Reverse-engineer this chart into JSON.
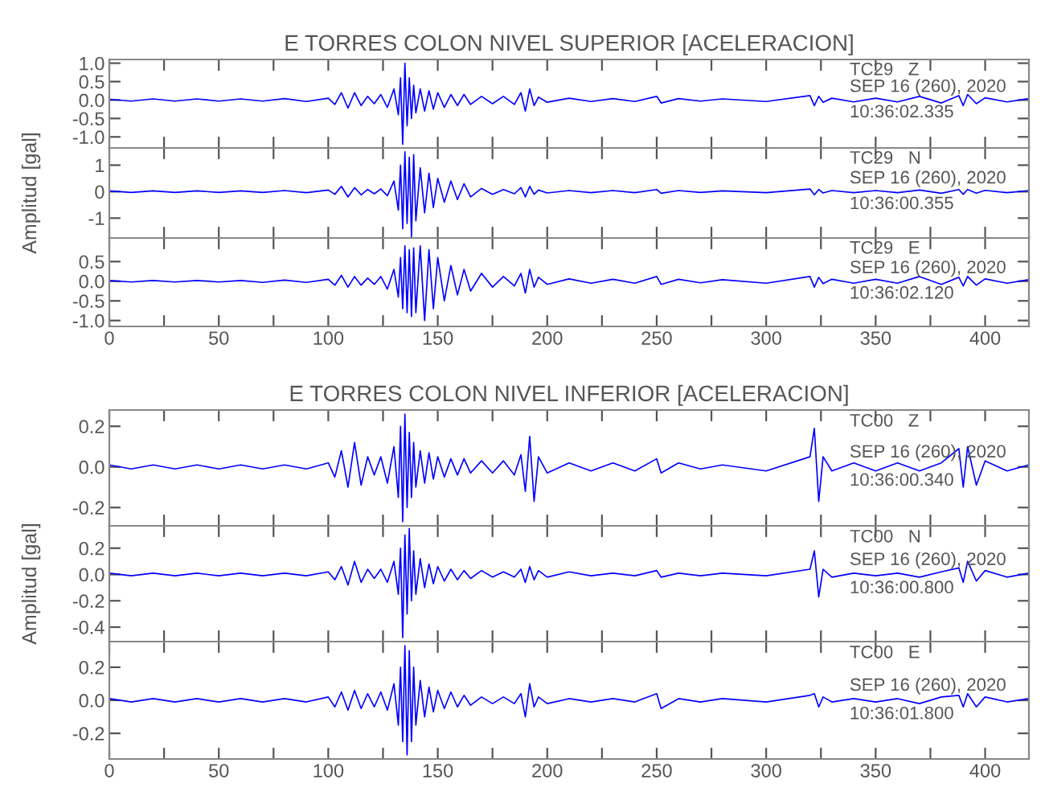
{
  "chart_data": [
    {
      "type": "line",
      "title": "E TORRES COLON NIVEL SUPERIOR [ACELERACION]",
      "annotations": [
        "TC29   Z",
        "SEP 16 (260), 2020",
        "10:36:02.335"
      ],
      "xlim": [
        0,
        420
      ],
      "xticks": [
        0,
        {
          "value": 25,
          "label": null
        },
        50,
        {
          "value": 75,
          "label": null
        },
        100,
        {
          "value": 125,
          "label": null
        },
        150,
        {
          "value": 175,
          "label": null
        },
        200,
        {
          "value": 225,
          "label": null
        },
        250,
        {
          "value": 275,
          "label": null
        },
        300,
        {
          "value": 325,
          "label": null
        },
        350,
        {
          "value": 375,
          "label": null
        },
        400
      ],
      "ylim": [
        -1.3,
        1.1
      ],
      "yticks": [
        {
          "value": 1,
          "label": "1.0"
        },
        0.5,
        {
          "value": 0,
          "label": "0.0"
        },
        -0.5,
        {
          "value": -1,
          "label": "-1.0"
        }
      ],
      "tick_labels": "y",
      "x": [
        0,
        10,
        20,
        30,
        40,
        50,
        60,
        70,
        80,
        90,
        100,
        103,
        106,
        109,
        112,
        115,
        118,
        121,
        124,
        127,
        130,
        132,
        133,
        134,
        135,
        136,
        137,
        138,
        139,
        140,
        142,
        144,
        146,
        148,
        150,
        153,
        156,
        159,
        162,
        165,
        170,
        175,
        180,
        185,
        188,
        190,
        192,
        194,
        196,
        200,
        210,
        220,
        230,
        240,
        250,
        252,
        260,
        270,
        280,
        300,
        320,
        322,
        324,
        326,
        330,
        340,
        350,
        360,
        370,
        380,
        388,
        390,
        392,
        396,
        400,
        410,
        420
      ],
      "series": [
        {
          "color": "#0000ff",
          "values": [
            0.02,
            -0.03,
            0.03,
            -0.03,
            0.03,
            -0.03,
            0.03,
            -0.03,
            0.04,
            -0.04,
            0.05,
            -0.12,
            0.2,
            -0.22,
            0.2,
            -0.15,
            0.1,
            -0.1,
            0.15,
            -0.2,
            0.3,
            -0.4,
            0.6,
            -1.2,
            1.0,
            -0.7,
            0.6,
            -0.5,
            0.4,
            -0.35,
            0.3,
            -0.3,
            0.25,
            -0.25,
            0.2,
            -0.2,
            0.15,
            -0.15,
            0.15,
            -0.12,
            0.1,
            -0.1,
            0.1,
            -0.12,
            0.2,
            -0.3,
            0.3,
            -0.15,
            0.08,
            -0.06,
            0.05,
            -0.04,
            0.04,
            -0.04,
            0.1,
            -0.08,
            0.04,
            -0.03,
            0.03,
            -0.04,
            0.12,
            -0.15,
            0.1,
            -0.06,
            0.05,
            -0.05,
            0.05,
            -0.05,
            0.1,
            -0.08,
            0.12,
            -0.15,
            0.15,
            -0.1,
            0.06,
            -0.05,
            0.04
          ]
        }
      ]
    },
    {
      "type": "line",
      "ylabel": "Amplitud [gal]",
      "annotations": [
        "TC29   N",
        "SEP 16 (260), 2020",
        "10:36:00.355"
      ],
      "xlim": [
        0,
        420
      ],
      "xticks": [
        0,
        {
          "value": 25,
          "label": null
        },
        50,
        {
          "value": 75,
          "label": null
        },
        100,
        {
          "value": 125,
          "label": null
        },
        150,
        {
          "value": 175,
          "label": null
        },
        200,
        {
          "value": 225,
          "label": null
        },
        250,
        {
          "value": 275,
          "label": null
        },
        300,
        {
          "value": 325,
          "label": null
        },
        350,
        {
          "value": 375,
          "label": null
        },
        400
      ],
      "ylim": [
        -1.75,
        1.65
      ],
      "yticks": [
        1,
        0,
        -1
      ],
      "tick_labels": "y",
      "x": [
        0,
        10,
        20,
        30,
        40,
        50,
        60,
        70,
        80,
        90,
        100,
        103,
        106,
        109,
        112,
        115,
        118,
        121,
        124,
        127,
        130,
        132,
        133,
        134,
        135,
        136,
        137,
        138,
        139,
        140,
        142,
        144,
        146,
        148,
        150,
        153,
        156,
        159,
        162,
        165,
        170,
        175,
        180,
        185,
        188,
        190,
        192,
        194,
        196,
        200,
        210,
        220,
        230,
        240,
        250,
        252,
        260,
        270,
        280,
        300,
        320,
        322,
        324,
        326,
        330,
        340,
        350,
        360,
        370,
        380,
        388,
        390,
        392,
        396,
        400,
        410,
        420
      ],
      "series": [
        {
          "color": "#0000ff",
          "values": [
            0.03,
            -0.03,
            0.03,
            -0.03,
            0.03,
            -0.03,
            0.03,
            -0.03,
            0.04,
            -0.04,
            0.06,
            -0.1,
            0.2,
            -0.2,
            0.15,
            -0.12,
            0.08,
            -0.08,
            0.1,
            -0.15,
            0.4,
            -0.7,
            1.0,
            -1.4,
            1.5,
            -1.2,
            1.3,
            -1.7,
            1.4,
            -1.1,
            0.9,
            -0.8,
            0.7,
            -0.6,
            0.5,
            -0.4,
            0.4,
            -0.3,
            0.3,
            -0.2,
            0.12,
            -0.1,
            0.08,
            -0.08,
            0.15,
            -0.2,
            0.2,
            -0.1,
            0.06,
            -0.05,
            0.04,
            -0.04,
            0.04,
            -0.04,
            0.08,
            -0.06,
            0.04,
            -0.03,
            0.03,
            -0.04,
            0.1,
            -0.12,
            0.08,
            -0.05,
            0.04,
            -0.04,
            0.04,
            -0.04,
            0.06,
            -0.06,
            0.08,
            -0.1,
            0.08,
            -0.06,
            0.05,
            -0.04,
            0.04
          ]
        }
      ]
    },
    {
      "type": "line",
      "annotations": [
        "TC29   E",
        "SEP 16 (260), 2020",
        "10:36:02.120"
      ],
      "xlim": [
        0,
        420
      ],
      "xticks": [
        0,
        {
          "value": 25,
          "label": null
        },
        50,
        {
          "value": 75,
          "label": null
        },
        100,
        {
          "value": 125,
          "label": null
        },
        150,
        {
          "value": 175,
          "label": null
        },
        200,
        {
          "value": 225,
          "label": null
        },
        250,
        {
          "value": 275,
          "label": null
        },
        300,
        {
          "value": 325,
          "label": null
        },
        350,
        {
          "value": 375,
          "label": null
        },
        400
      ],
      "ylim": [
        -1.15,
        1.1
      ],
      "yticks": [
        0.5,
        {
          "value": 0,
          "label": "0.0"
        },
        -0.5,
        {
          "value": -1,
          "label": "-1.0"
        }
      ],
      "x": [
        0,
        10,
        20,
        30,
        40,
        50,
        60,
        70,
        80,
        90,
        100,
        103,
        106,
        109,
        112,
        115,
        118,
        121,
        124,
        127,
        130,
        132,
        133,
        134,
        135,
        136,
        137,
        138,
        139,
        140,
        142,
        144,
        146,
        148,
        150,
        153,
        156,
        159,
        162,
        165,
        170,
        175,
        180,
        185,
        188,
        190,
        192,
        194,
        196,
        200,
        210,
        220,
        230,
        240,
        250,
        252,
        260,
        270,
        280,
        300,
        320,
        322,
        324,
        326,
        330,
        340,
        350,
        360,
        370,
        380,
        388,
        390,
        392,
        396,
        400,
        410,
        420
      ],
      "series": [
        {
          "color": "#0000ff",
          "values": [
            0.02,
            -0.02,
            0.02,
            -0.02,
            0.02,
            -0.02,
            0.02,
            -0.03,
            0.03,
            -0.03,
            0.05,
            -0.1,
            0.15,
            -0.15,
            0.12,
            -0.1,
            0.08,
            -0.08,
            0.12,
            -0.2,
            0.3,
            -0.4,
            0.6,
            -0.7,
            0.9,
            -0.8,
            0.8,
            -0.9,
            0.85,
            -0.8,
            0.9,
            -1.0,
            0.8,
            -0.7,
            0.6,
            -0.5,
            0.4,
            -0.35,
            0.3,
            -0.25,
            0.2,
            -0.15,
            0.12,
            -0.12,
            0.2,
            -0.3,
            0.3,
            -0.15,
            0.1,
            -0.08,
            0.06,
            -0.05,
            0.05,
            -0.05,
            0.12,
            -0.08,
            0.05,
            -0.04,
            0.04,
            -0.05,
            0.12,
            -0.15,
            0.1,
            -0.06,
            0.05,
            -0.05,
            0.05,
            -0.05,
            0.12,
            -0.08,
            0.1,
            -0.12,
            0.12,
            -0.1,
            0.06,
            -0.05,
            0.04
          ]
        }
      ]
    },
    {
      "type": "line",
      "title": "E TORRES COLON NIVEL INFERIOR [ACELERACION]",
      "annotations": [
        "TC00   Z",
        "SEP 16 (260), 2020",
        "10:36:00.340"
      ],
      "xlim": [
        0,
        420
      ],
      "xticks": [
        0,
        {
          "value": 25,
          "label": null
        },
        50,
        {
          "value": 75,
          "label": null
        },
        100,
        {
          "value": 125,
          "label": null
        },
        150,
        {
          "value": 175,
          "label": null
        },
        200,
        {
          "value": 225,
          "label": null
        },
        250,
        {
          "value": 275,
          "label": null
        },
        300,
        {
          "value": 325,
          "label": null
        },
        350,
        {
          "value": 375,
          "label": null
        },
        400
      ],
      "ylim": [
        -0.29,
        0.28
      ],
      "yticks": [
        0.2,
        {
          "value": 0,
          "label": "0.0"
        },
        -0.2
      ],
      "tick_labels": "y",
      "x": [
        0,
        10,
        20,
        30,
        40,
        50,
        60,
        70,
        80,
        90,
        100,
        103,
        106,
        109,
        112,
        115,
        118,
        121,
        124,
        127,
        130,
        132,
        133,
        134,
        135,
        136,
        137,
        138,
        139,
        140,
        142,
        144,
        146,
        148,
        150,
        153,
        156,
        159,
        162,
        165,
        170,
        175,
        180,
        185,
        188,
        190,
        192,
        194,
        196,
        200,
        210,
        220,
        230,
        240,
        250,
        252,
        260,
        270,
        280,
        300,
        320,
        322,
        324,
        326,
        330,
        340,
        350,
        360,
        370,
        380,
        388,
        390,
        392,
        396,
        400,
        410,
        420
      ],
      "series": [
        {
          "color": "#0000ff",
          "values": [
            0.01,
            -0.01,
            0.01,
            -0.01,
            0.01,
            -0.01,
            0.01,
            -0.01,
            0.01,
            -0.01,
            0.02,
            -0.05,
            0.08,
            -0.1,
            0.12,
            -0.09,
            0.05,
            -0.04,
            0.05,
            -0.08,
            0.1,
            -0.15,
            0.2,
            -0.27,
            0.26,
            -0.2,
            0.17,
            -0.15,
            0.12,
            -0.1,
            0.08,
            -0.08,
            0.07,
            -0.06,
            0.05,
            -0.05,
            0.04,
            -0.04,
            0.04,
            -0.03,
            0.03,
            -0.03,
            0.03,
            -0.04,
            0.06,
            -0.12,
            0.15,
            -0.17,
            0.05,
            -0.03,
            0.02,
            -0.02,
            0.02,
            -0.02,
            0.04,
            -0.03,
            0.02,
            -0.01,
            0.01,
            -0.02,
            0.05,
            0.19,
            -0.17,
            0.05,
            -0.02,
            0.02,
            -0.02,
            0.02,
            -0.02,
            0.02,
            0.09,
            -0.1,
            0.1,
            -0.09,
            0.03,
            -0.02,
            0.01
          ]
        }
      ]
    },
    {
      "type": "line",
      "ylabel": "Amplitud [gal]",
      "annotations": [
        "TC00   N",
        "SEP 16 (260), 2020",
        "10:36:00.800"
      ],
      "xlim": [
        0,
        420
      ],
      "xticks": [
        0,
        {
          "value": 25,
          "label": null
        },
        50,
        {
          "value": 75,
          "label": null
        },
        100,
        {
          "value": 125,
          "label": null
        },
        150,
        {
          "value": 175,
          "label": null
        },
        200,
        {
          "value": 225,
          "label": null
        },
        250,
        {
          "value": 275,
          "label": null
        },
        300,
        {
          "value": 325,
          "label": null
        },
        350,
        {
          "value": 375,
          "label": null
        },
        400
      ],
      "ylim": [
        -0.51,
        0.37
      ],
      "yticks": [
        0.2,
        {
          "value": 0,
          "label": "0.0"
        },
        -0.2,
        -0.4
      ],
      "tick_labels": "y",
      "x": [
        0,
        10,
        20,
        30,
        40,
        50,
        60,
        70,
        80,
        90,
        100,
        103,
        106,
        109,
        112,
        115,
        118,
        121,
        124,
        127,
        130,
        132,
        133,
        134,
        135,
        136,
        137,
        138,
        139,
        140,
        142,
        144,
        146,
        148,
        150,
        153,
        156,
        159,
        162,
        165,
        170,
        175,
        180,
        185,
        188,
        190,
        192,
        194,
        196,
        200,
        210,
        220,
        230,
        240,
        250,
        252,
        260,
        270,
        280,
        300,
        320,
        322,
        324,
        326,
        330,
        340,
        350,
        360,
        370,
        380,
        388,
        390,
        392,
        396,
        400,
        410,
        420
      ],
      "series": [
        {
          "color": "#0000ff",
          "values": [
            0.01,
            -0.01,
            0.01,
            -0.01,
            0.01,
            -0.01,
            0.01,
            -0.01,
            0.01,
            -0.01,
            0.02,
            -0.04,
            0.06,
            -0.08,
            0.1,
            -0.06,
            0.04,
            -0.03,
            0.04,
            -0.06,
            0.1,
            -0.15,
            0.2,
            -0.48,
            0.3,
            -0.3,
            0.35,
            -0.2,
            0.18,
            -0.15,
            0.12,
            -0.1,
            0.08,
            -0.07,
            0.06,
            -0.05,
            0.04,
            -0.04,
            0.03,
            -0.03,
            0.03,
            -0.02,
            0.02,
            -0.02,
            0.04,
            -0.06,
            0.06,
            -0.04,
            0.03,
            -0.02,
            0.02,
            -0.01,
            0.01,
            -0.01,
            0.03,
            -0.02,
            0.01,
            -0.01,
            0.01,
            -0.01,
            0.04,
            0.18,
            -0.17,
            0.04,
            -0.02,
            0.01,
            -0.01,
            0.01,
            -0.02,
            0.02,
            0.05,
            -0.06,
            0.1,
            -0.05,
            0.03,
            -0.02,
            0.01
          ]
        }
      ]
    },
    {
      "type": "line",
      "annotations": [
        "TC00   E",
        "SEP 16 (260), 2020",
        "10:36:01.800"
      ],
      "xlim": [
        0,
        420
      ],
      "xticks": [
        0,
        {
          "value": 25,
          "label": null
        },
        50,
        {
          "value": 75,
          "label": null
        },
        100,
        {
          "value": 125,
          "label": null
        },
        150,
        {
          "value": 175,
          "label": null
        },
        200,
        {
          "value": 225,
          "label": null
        },
        250,
        {
          "value": 275,
          "label": null
        },
        300,
        {
          "value": 325,
          "label": null
        },
        350,
        {
          "value": 375,
          "label": null
        },
        400
      ],
      "ylim": [
        -0.355,
        0.355
      ],
      "yticks": [
        0.2,
        {
          "value": 0,
          "label": "0.0"
        },
        -0.2
      ],
      "x": [
        0,
        10,
        20,
        30,
        40,
        50,
        60,
        70,
        80,
        90,
        100,
        103,
        106,
        109,
        112,
        115,
        118,
        121,
        124,
        127,
        130,
        132,
        133,
        134,
        135,
        136,
        137,
        138,
        139,
        140,
        142,
        144,
        146,
        148,
        150,
        153,
        156,
        159,
        162,
        165,
        170,
        175,
        180,
        185,
        188,
        190,
        192,
        194,
        196,
        200,
        210,
        220,
        230,
        240,
        250,
        252,
        260,
        270,
        280,
        300,
        320,
        322,
        324,
        326,
        330,
        340,
        350,
        360,
        370,
        380,
        388,
        390,
        392,
        396,
        400,
        410,
        420
      ],
      "series": [
        {
          "color": "#0000ff",
          "values": [
            0.01,
            -0.01,
            0.01,
            -0.01,
            0.01,
            -0.01,
            0.01,
            -0.01,
            0.01,
            -0.01,
            0.02,
            -0.04,
            0.05,
            -0.06,
            0.06,
            -0.05,
            0.04,
            -0.04,
            0.05,
            -0.06,
            0.1,
            -0.15,
            0.2,
            -0.25,
            0.33,
            -0.33,
            0.3,
            -0.25,
            0.2,
            -0.15,
            0.12,
            -0.1,
            0.08,
            -0.07,
            0.06,
            -0.05,
            0.05,
            -0.04,
            0.03,
            -0.03,
            0.02,
            -0.02,
            0.02,
            -0.02,
            0.04,
            -0.1,
            0.1,
            -0.04,
            0.02,
            -0.02,
            0.01,
            -0.01,
            0.01,
            -0.01,
            0.04,
            -0.05,
            0.01,
            -0.01,
            0.01,
            -0.01,
            0.03,
            0.04,
            -0.04,
            0.02,
            -0.01,
            0.01,
            -0.01,
            0.01,
            -0.02,
            0.02,
            0.03,
            -0.04,
            0.04,
            -0.04,
            0.02,
            -0.01,
            0.01
          ]
        }
      ]
    }
  ]
}
